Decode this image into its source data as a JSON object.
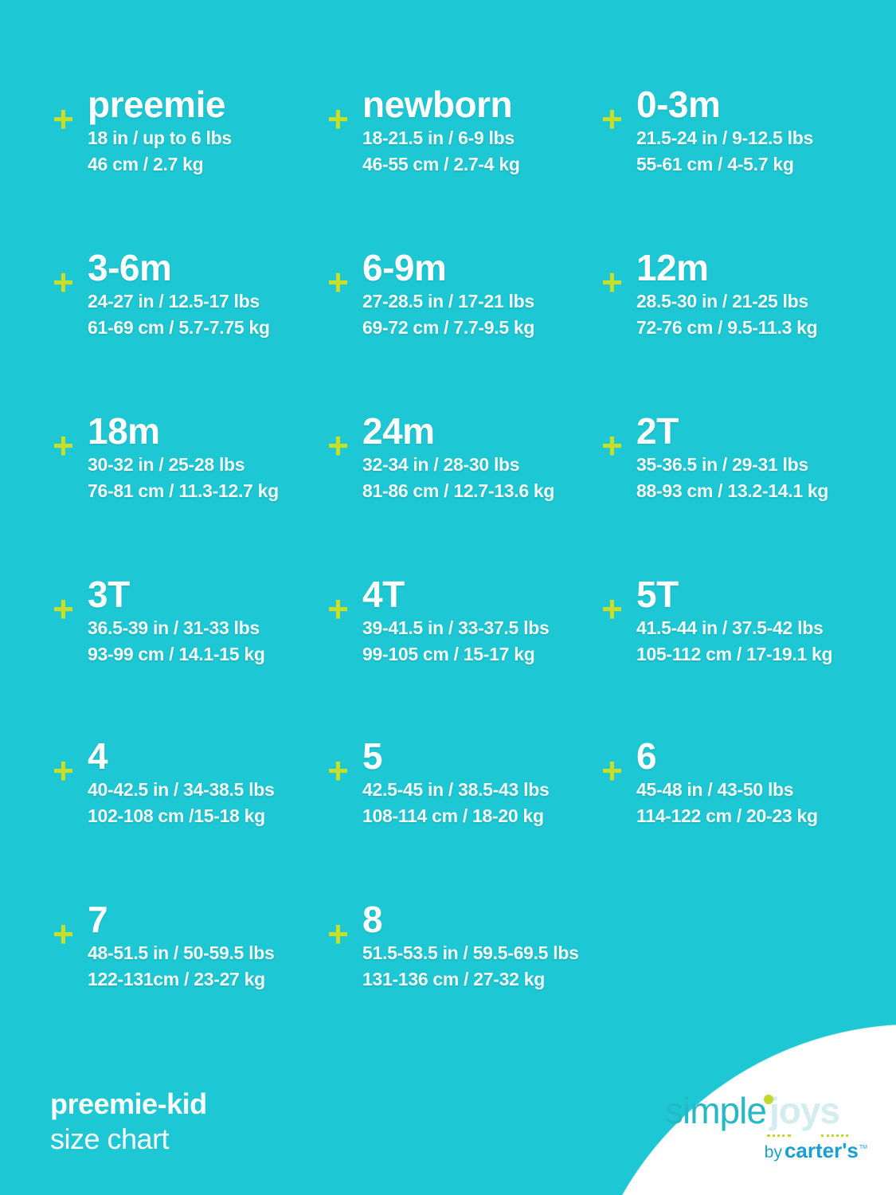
{
  "colors": {
    "background": "#1dc7d3",
    "plus": "#c8df2a",
    "text": "#ffffff"
  },
  "plus_symbol": "+",
  "sizes": [
    {
      "title": "preemie",
      "line1": "18 in / up to 6 lbs",
      "line2": "46 cm / 2.7 kg"
    },
    {
      "title": "newborn",
      "line1": "18-21.5 in / 6-9 lbs",
      "line2": "46-55 cm / 2.7-4 kg"
    },
    {
      "title": "0-3m",
      "line1": "21.5-24 in / 9-12.5 lbs",
      "line2": "55-61 cm / 4-5.7  kg"
    },
    {
      "title": "3-6m",
      "line1": "24-27 in / 12.5-17 lbs",
      "line2": "61-69 cm / 5.7-7.75 kg"
    },
    {
      "title": "6-9m",
      "line1": "27-28.5 in / 17-21 lbs",
      "line2": "69-72 cm / 7.7-9.5 kg"
    },
    {
      "title": "12m",
      "line1": "28.5-30 in / 21-25 lbs",
      "line2": "72-76 cm / 9.5-11.3 kg"
    },
    {
      "title": "18m",
      "line1": "30-32 in / 25-28 lbs",
      "line2": "76-81 cm / 11.3-12.7 kg"
    },
    {
      "title": "24m",
      "line1": "32-34 in / 28-30 lbs",
      "line2": "81-86 cm / 12.7-13.6 kg"
    },
    {
      "title": "2T",
      "line1": "35-36.5 in / 29-31 lbs",
      "line2": "88-93 cm / 13.2-14.1 kg"
    },
    {
      "title": "3T",
      "line1": "36.5-39 in / 31-33 lbs",
      "line2": "93-99 cm / 14.1-15 kg"
    },
    {
      "title": "4T",
      "line1": "39-41.5 in / 33-37.5 lbs",
      "line2": "99-105 cm / 15-17 kg"
    },
    {
      "title": "5T",
      "line1": "41.5-44 in / 37.5-42 lbs",
      "line2": "105-112 cm / 17-19.1 kg"
    },
    {
      "title": "4",
      "line1": "40-42.5 in / 34-38.5 lbs",
      "line2": "102-108 cm /15-18 kg"
    },
    {
      "title": "5",
      "line1": "42.5-45 in / 38.5-43 lbs",
      "line2": "108-114 cm / 18-20 kg"
    },
    {
      "title": "6",
      "line1": "45-48 in / 43-50 lbs",
      "line2": "114-122 cm / 20-23 kg"
    },
    {
      "title": "7",
      "line1": "48-51.5 in / 50-59.5 lbs",
      "line2": "122-131cm / 23-27 kg"
    },
    {
      "title": "8",
      "line1": "51.5-53.5 in / 59.5-69.5 lbs",
      "line2": "131-136 cm / 27-32 kg"
    }
  ],
  "footer": {
    "line1": "preemie-kid",
    "line2": "size chart"
  },
  "logo": {
    "simple": "simple",
    "joys": "joys",
    "by": "by",
    "brand": "carter's",
    "tm": "TM"
  }
}
